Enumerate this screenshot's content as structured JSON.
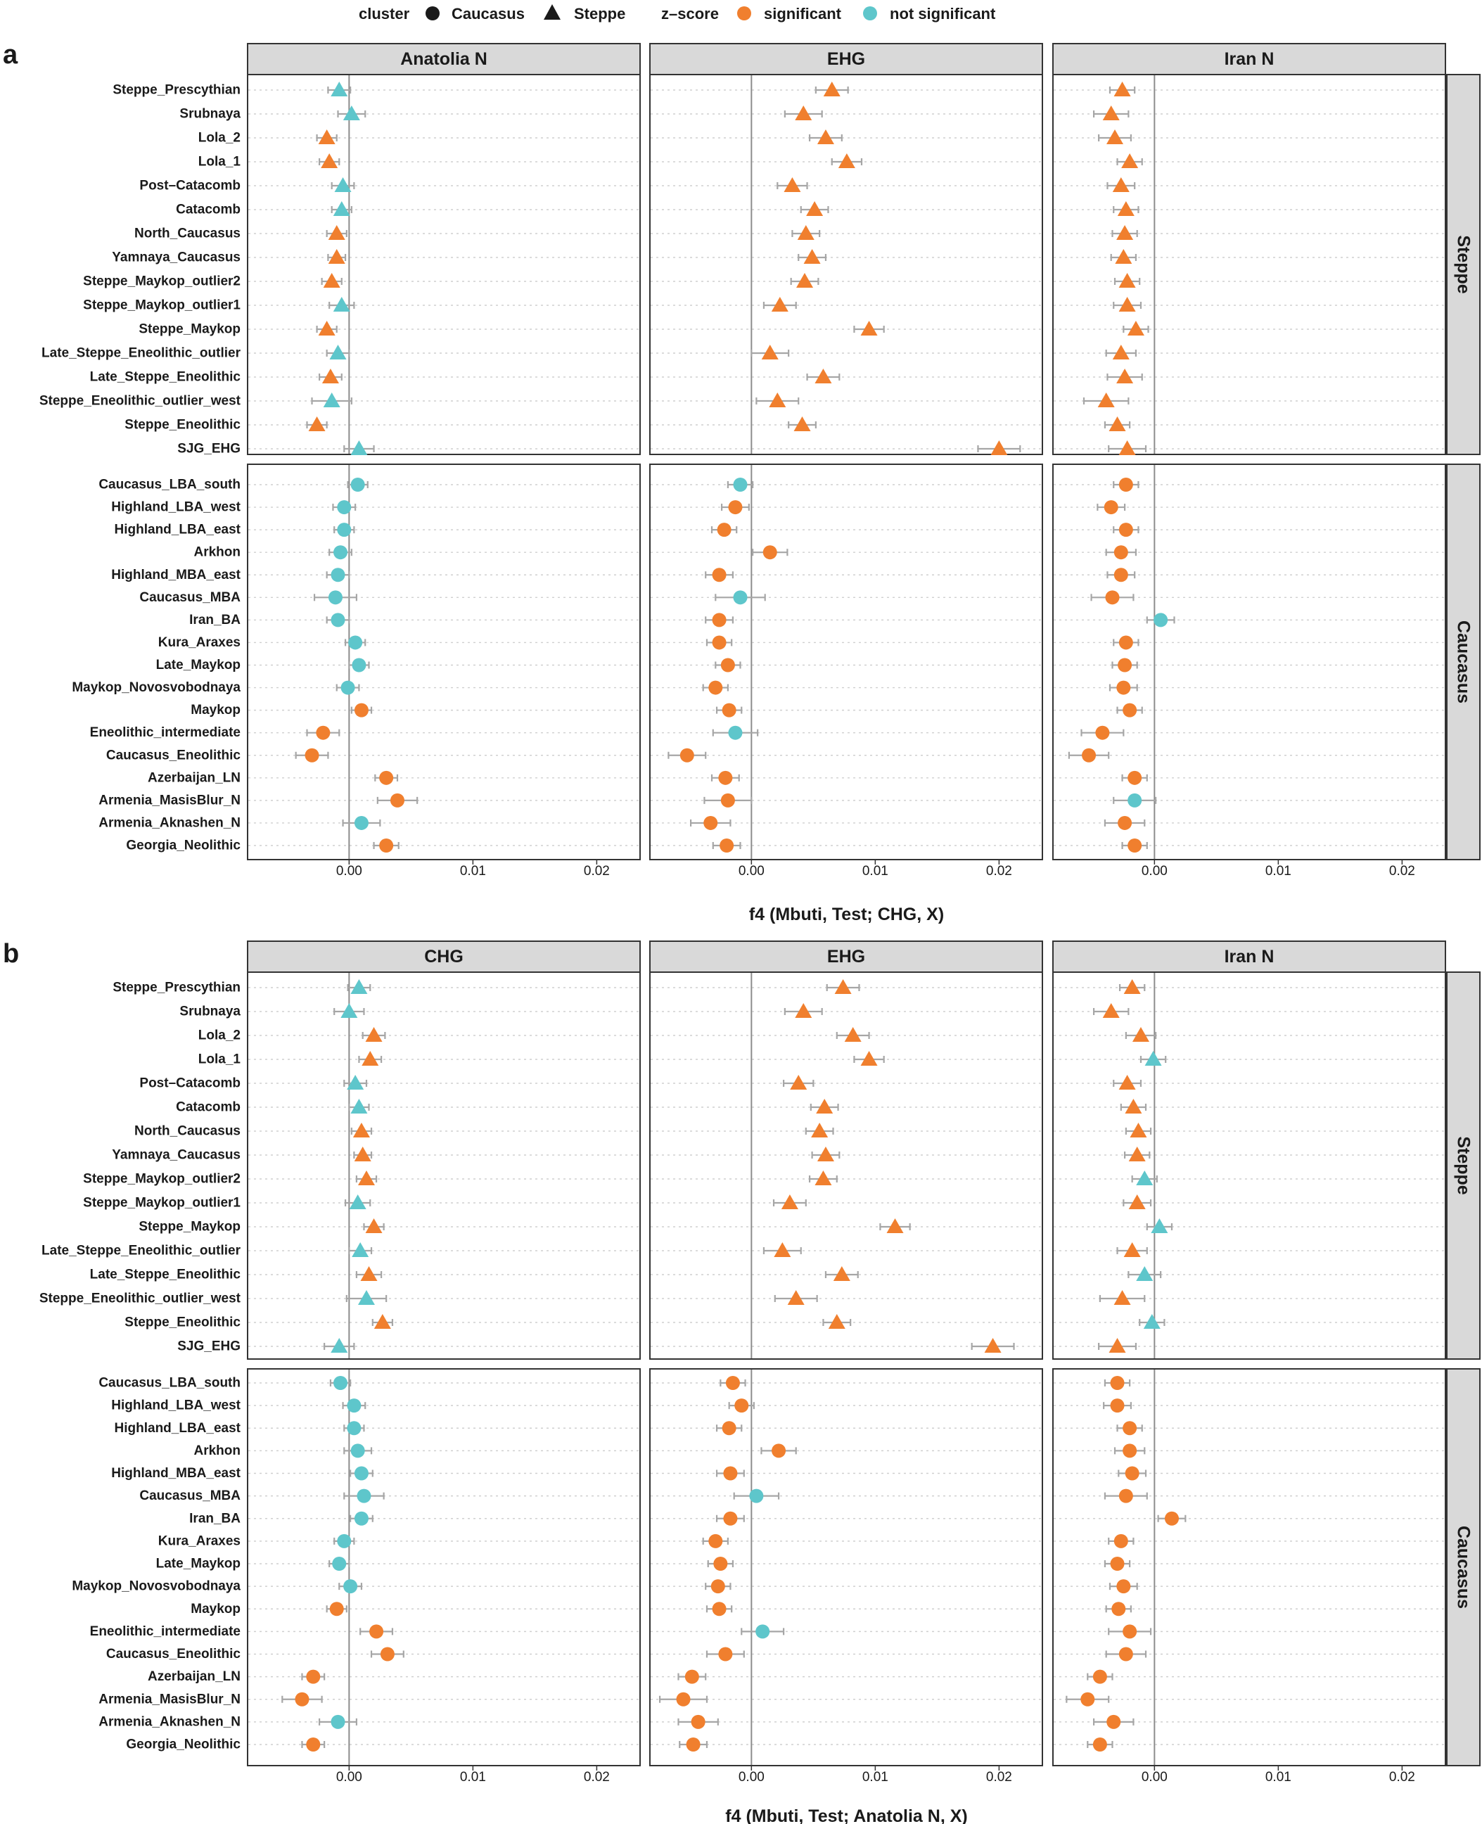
{
  "legend": {
    "cluster_title": "cluster",
    "cluster_items": [
      {
        "label": "Caucasus",
        "shape": "circle"
      },
      {
        "label": "Steppe",
        "shape": "triangle"
      }
    ],
    "z_title": "z–score",
    "z_items": [
      {
        "label": "significant",
        "color": "#F07F2E"
      },
      {
        "label": "not significant",
        "color": "#5EC6CB"
      }
    ]
  },
  "colors": {
    "significant": "#F07F2E",
    "not_significant": "#5EC6CB"
  },
  "chart_data": [
    {
      "type": "scatter",
      "panel_label": "a",
      "xlabel": "f4 (Mbuti, Test; CHG, X)",
      "xlim": [
        -0.0082,
        0.0235
      ],
      "x_ticks": [
        "0.00",
        "0.01",
        "0.02"
      ],
      "x_tick_values": [
        0,
        0.01,
        0.02
      ],
      "facet_columns": [
        "Anatolia N",
        "EHG",
        "Iran N"
      ],
      "facet_rows": [
        "Steppe",
        "Caucasus"
      ],
      "row_labels": {
        "Steppe": [
          "Steppe_Prescythian",
          "Srubnaya",
          "Lola_2",
          "Lola_1",
          "Post–Catacomb",
          "Catacomb",
          "North_Caucasus",
          "Yamnaya_Caucasus",
          "Steppe_Maykop_outlier2",
          "Steppe_Maykop_outlier1",
          "Steppe_Maykop",
          "Late_Steppe_Eneolithic_outlier",
          "Late_Steppe_Eneolithic",
          "Steppe_Eneolithic_outlier_west",
          "Steppe_Eneolithic",
          "SJG_EHG"
        ],
        "Caucasus": [
          "Caucasus_LBA_south",
          "Highland_LBA_west",
          "Highland_LBA_east",
          "Arkhon",
          "Highland_MBA_east",
          "Caucasus_MBA",
          "Iran_BA",
          "Kura_Araxes",
          "Late_Maykop",
          "Maykop_Novosvobodnaya",
          "Maykop",
          "Eneolithic_intermediate",
          "Caucasus_Eneolithic",
          "Azerbaijan_LN",
          "Armenia_MasisBlur_N",
          "Armenia_Aknashen_N",
          "Georgia_Neolithic"
        ]
      },
      "series": {
        "Anatolia N": {
          "Steppe": {
            "values": [
              -0.0008,
              0.0002,
              -0.0018,
              -0.0016,
              -0.0005,
              -0.0006,
              -0.001,
              -0.001,
              -0.0014,
              -0.0006,
              -0.0018,
              -0.0009,
              -0.0015,
              -0.0014,
              -0.0026,
              0.0008
            ],
            "errors": [
              0.0009,
              0.0011,
              0.0008,
              0.0008,
              0.0009,
              0.0008,
              0.0008,
              0.0007,
              0.0008,
              0.001,
              0.0008,
              0.0009,
              0.0009,
              0.0016,
              0.0008,
              0.0012
            ],
            "significant": [
              false,
              false,
              true,
              true,
              false,
              false,
              true,
              true,
              true,
              false,
              true,
              false,
              true,
              false,
              true,
              false
            ]
          },
          "Caucasus": {
            "values": [
              0.0007,
              -0.0004,
              -0.0004,
              -0.0007,
              -0.0009,
              -0.0011,
              -0.0009,
              0.0005,
              0.0008,
              -0.0001,
              0.001,
              -0.0021,
              -0.003,
              0.003,
              0.0039,
              0.001,
              0.003
            ],
            "errors": [
              0.0008,
              0.0009,
              0.0008,
              0.0009,
              0.0009,
              0.0017,
              0.0009,
              0.0008,
              0.0008,
              0.0009,
              0.0008,
              0.0013,
              0.0013,
              0.0009,
              0.0016,
              0.0015,
              0.001
            ],
            "significant": [
              false,
              false,
              false,
              false,
              false,
              false,
              false,
              false,
              false,
              false,
              true,
              true,
              true,
              true,
              true,
              false,
              true
            ]
          }
        },
        "EHG": {
          "Steppe": {
            "values": [
              0.0065,
              0.0042,
              0.006,
              0.0077,
              0.0033,
              0.0051,
              0.0044,
              0.0049,
              0.0043,
              0.0023,
              0.0095,
              0.0015,
              0.0058,
              0.0021,
              0.0041,
              0.02
            ],
            "errors": [
              0.0013,
              0.0015,
              0.0013,
              0.0012,
              0.0012,
              0.0011,
              0.0011,
              0.0011,
              0.0011,
              0.0013,
              0.0012,
              0.0015,
              0.0013,
              0.0017,
              0.0011,
              0.0017
            ],
            "significant": [
              true,
              true,
              true,
              true,
              true,
              true,
              true,
              true,
              true,
              true,
              true,
              true,
              true,
              true,
              true,
              true
            ]
          },
          "Caucasus": {
            "values": [
              -0.0009,
              -0.0013,
              -0.0022,
              0.0015,
              -0.0026,
              -0.0009,
              -0.0026,
              -0.0026,
              -0.0019,
              -0.0029,
              -0.0018,
              -0.0013,
              -0.0052,
              -0.0021,
              -0.0019,
              -0.0033,
              -0.002
            ],
            "errors": [
              0.001,
              0.0011,
              0.001,
              0.0014,
              0.0011,
              0.002,
              0.0011,
              0.001,
              0.001,
              0.001,
              0.001,
              0.0018,
              0.0015,
              0.0011,
              0.0019,
              0.0016,
              0.0011
            ],
            "significant": [
              false,
              true,
              true,
              true,
              true,
              false,
              true,
              true,
              true,
              true,
              true,
              false,
              true,
              true,
              true,
              true,
              true
            ]
          }
        },
        "Iran N": {
          "Steppe": {
            "values": [
              -0.0026,
              -0.0035,
              -0.0032,
              -0.002,
              -0.0027,
              -0.0023,
              -0.0024,
              -0.0025,
              -0.0022,
              -0.0022,
              -0.0015,
              -0.0027,
              -0.0024,
              -0.0039,
              -0.003,
              -0.0022
            ],
            "errors": [
              0.001,
              0.0014,
              0.0013,
              0.001,
              0.0011,
              0.001,
              0.001,
              0.001,
              0.001,
              0.0011,
              0.001,
              0.0012,
              0.0014,
              0.0018,
              0.001,
              0.0015
            ],
            "significant": [
              true,
              true,
              true,
              true,
              true,
              true,
              true,
              true,
              true,
              true,
              true,
              true,
              true,
              true,
              true,
              true
            ]
          },
          "Caucasus": {
            "values": [
              -0.0023,
              -0.0035,
              -0.0023,
              -0.0027,
              -0.0027,
              -0.0034,
              0.0005,
              -0.0023,
              -0.0024,
              -0.0025,
              -0.002,
              -0.0042,
              -0.0053,
              -0.0016,
              -0.0016,
              -0.0024,
              -0.0016
            ],
            "errors": [
              0.001,
              0.0011,
              0.001,
              0.0012,
              0.0011,
              0.0017,
              0.0011,
              0.001,
              0.001,
              0.0011,
              0.001,
              0.0017,
              0.0016,
              0.001,
              0.0017,
              0.0016,
              0.001
            ],
            "significant": [
              true,
              true,
              true,
              true,
              true,
              true,
              false,
              true,
              true,
              true,
              true,
              true,
              true,
              true,
              false,
              true,
              true
            ]
          }
        }
      }
    },
    {
      "type": "scatter",
      "panel_label": "b",
      "xlabel": "f4 (Mbuti, Test; Anatolia N, X)",
      "xlim": [
        -0.0082,
        0.0235
      ],
      "x_ticks": [
        "0.00",
        "0.01",
        "0.02"
      ],
      "x_tick_values": [
        0,
        0.01,
        0.02
      ],
      "facet_columns": [
        "CHG",
        "EHG",
        "Iran N"
      ],
      "facet_rows": [
        "Steppe",
        "Caucasus"
      ],
      "row_labels": {
        "Steppe": [
          "Steppe_Prescythian",
          "Srubnaya",
          "Lola_2",
          "Lola_1",
          "Post–Catacomb",
          "Catacomb",
          "North_Caucasus",
          "Yamnaya_Caucasus",
          "Steppe_Maykop_outlier2",
          "Steppe_Maykop_outlier1",
          "Steppe_Maykop",
          "Late_Steppe_Eneolithic_outlier",
          "Late_Steppe_Eneolithic",
          "Steppe_Eneolithic_outlier_west",
          "Steppe_Eneolithic",
          "SJG_EHG"
        ],
        "Caucasus": [
          "Caucasus_LBA_south",
          "Highland_LBA_west",
          "Highland_LBA_east",
          "Arkhon",
          "Highland_MBA_east",
          "Caucasus_MBA",
          "Iran_BA",
          "Kura_Araxes",
          "Late_Maykop",
          "Maykop_Novosvobodnaya",
          "Maykop",
          "Eneolithic_intermediate",
          "Caucasus_Eneolithic",
          "Azerbaijan_LN",
          "Armenia_MasisBlur_N",
          "Armenia_Aknashen_N",
          "Georgia_Neolithic"
        ]
      },
      "series": {
        "CHG": {
          "Steppe": {
            "values": [
              0.0008,
              0.0,
              0.002,
              0.0017,
              0.0005,
              0.0008,
              0.001,
              0.0011,
              0.0014,
              0.0007,
              0.002,
              0.0009,
              0.0016,
              0.0014,
              0.0027,
              -0.0008
            ],
            "errors": [
              0.0009,
              0.0012,
              0.0009,
              0.0009,
              0.0009,
              0.0008,
              0.0008,
              0.0007,
              0.0008,
              0.001,
              0.0008,
              0.0009,
              0.001,
              0.0016,
              0.0008,
              0.0012
            ],
            "significant": [
              false,
              false,
              true,
              true,
              false,
              false,
              true,
              true,
              true,
              false,
              true,
              false,
              true,
              false,
              true,
              false
            ]
          },
          "Caucasus": {
            "values": [
              -0.0007,
              0.0004,
              0.0004,
              0.0007,
              0.001,
              0.0012,
              0.001,
              -0.0004,
              -0.0008,
              0.0001,
              -0.001,
              0.0022,
              0.0031,
              -0.0029,
              -0.0038,
              -0.0009,
              -0.0029
            ],
            "errors": [
              0.0008,
              0.0009,
              0.0008,
              0.0011,
              0.0009,
              0.0016,
              0.0009,
              0.0008,
              0.0008,
              0.0009,
              0.0008,
              0.0013,
              0.0013,
              0.0009,
              0.0016,
              0.0015,
              0.0009
            ],
            "significant": [
              false,
              false,
              false,
              false,
              false,
              false,
              false,
              false,
              false,
              false,
              true,
              true,
              true,
              true,
              true,
              false,
              true
            ]
          }
        },
        "EHG": {
          "Steppe": {
            "values": [
              0.0074,
              0.0042,
              0.0082,
              0.0095,
              0.0038,
              0.0059,
              0.0055,
              0.006,
              0.0058,
              0.0031,
              0.0116,
              0.0025,
              0.0073,
              0.0036,
              0.0069,
              0.0195
            ],
            "errors": [
              0.0013,
              0.0015,
              0.0013,
              0.0012,
              0.0012,
              0.0011,
              0.0011,
              0.0011,
              0.0011,
              0.0013,
              0.0012,
              0.0015,
              0.0013,
              0.0017,
              0.0011,
              0.0017
            ],
            "significant": [
              true,
              true,
              true,
              true,
              true,
              true,
              true,
              true,
              true,
              true,
              true,
              true,
              true,
              true,
              true,
              true
            ]
          },
          "Caucasus": {
            "values": [
              -0.0015,
              -0.0008,
              -0.0018,
              0.0022,
              -0.0017,
              0.0004,
              -0.0017,
              -0.0029,
              -0.0025,
              -0.0027,
              -0.0026,
              0.0009,
              -0.0021,
              -0.0048,
              -0.0055,
              -0.0043,
              -0.0047
            ],
            "errors": [
              0.001,
              0.001,
              0.001,
              0.0014,
              0.0011,
              0.0018,
              0.0011,
              0.001,
              0.001,
              0.001,
              0.001,
              0.0017,
              0.0015,
              0.0011,
              0.0019,
              0.0016,
              0.0011
            ],
            "significant": [
              true,
              true,
              true,
              true,
              true,
              false,
              true,
              true,
              true,
              true,
              true,
              false,
              true,
              true,
              true,
              true,
              true
            ]
          }
        },
        "Iran N": {
          "Steppe": {
            "values": [
              -0.0018,
              -0.0035,
              -0.0011,
              -0.0001,
              -0.0022,
              -0.0017,
              -0.0013,
              -0.0014,
              -0.0008,
              -0.0014,
              0.0004,
              -0.0018,
              -0.0008,
              -0.0026,
              -0.0002,
              -0.003
            ],
            "errors": [
              0.001,
              0.0014,
              0.0012,
              0.001,
              0.0011,
              0.001,
              0.001,
              0.001,
              0.001,
              0.0011,
              0.001,
              0.0012,
              0.0013,
              0.0018,
              0.001,
              0.0015
            ],
            "significant": [
              true,
              true,
              true,
              false,
              true,
              true,
              true,
              true,
              false,
              true,
              false,
              true,
              false,
              true,
              false,
              true
            ]
          },
          "Caucasus": {
            "values": [
              -0.003,
              -0.003,
              -0.002,
              -0.002,
              -0.0018,
              -0.0023,
              0.0014,
              -0.0027,
              -0.003,
              -0.0025,
              -0.0029,
              -0.002,
              -0.0023,
              -0.0044,
              -0.0054,
              -0.0033,
              -0.0044
            ],
            "errors": [
              0.001,
              0.0011,
              0.001,
              0.0012,
              0.0011,
              0.0017,
              0.0011,
              0.001,
              0.001,
              0.0011,
              0.001,
              0.0017,
              0.0016,
              0.001,
              0.0017,
              0.0016,
              0.001
            ],
            "significant": [
              true,
              true,
              true,
              true,
              true,
              true,
              true,
              true,
              true,
              true,
              true,
              true,
              true,
              true,
              true,
              true,
              true
            ]
          }
        }
      }
    }
  ]
}
